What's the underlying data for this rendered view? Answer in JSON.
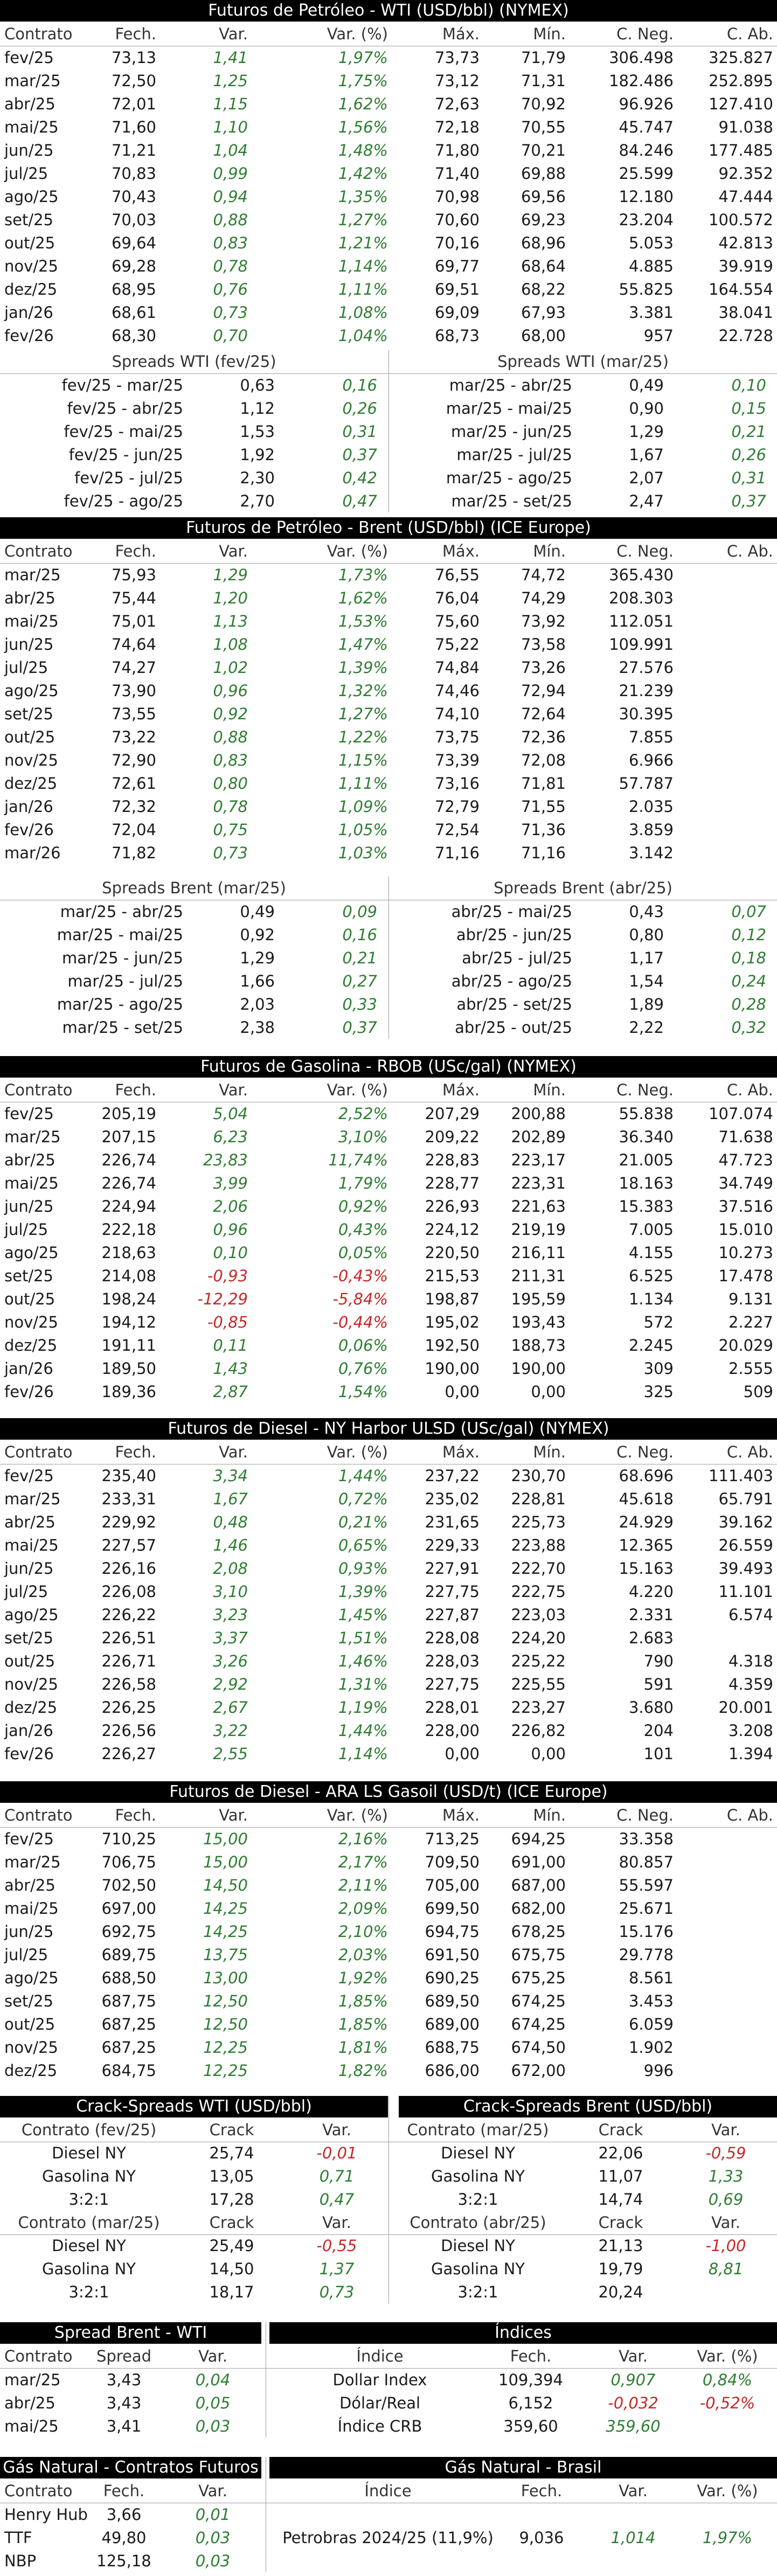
{
  "cols_main": [
    "Contrato",
    "Fech.",
    "Var.",
    "Var. (%)",
    "Máx.",
    "Mín.",
    "C. Neg.",
    "C. Ab."
  ],
  "wti": {
    "title": "Futuros de Petróleo - WTI (USD/bbl) (NYMEX)",
    "rows": [
      [
        "fev/25",
        "73,13",
        "1,41",
        "1,97%",
        "73,73",
        "71,79",
        "306.498",
        "325.827"
      ],
      [
        "mar/25",
        "72,50",
        "1,25",
        "1,75%",
        "73,12",
        "71,31",
        "182.486",
        "252.895"
      ],
      [
        "abr/25",
        "72,01",
        "1,15",
        "1,62%",
        "72,63",
        "70,92",
        "96.926",
        "127.410"
      ],
      [
        "mai/25",
        "71,60",
        "1,10",
        "1,56%",
        "72,18",
        "70,55",
        "45.747",
        "91.038"
      ],
      [
        "jun/25",
        "71,21",
        "1,04",
        "1,48%",
        "71,80",
        "70,21",
        "84.246",
        "177.485"
      ],
      [
        "jul/25",
        "70,83",
        "0,99",
        "1,42%",
        "71,40",
        "69,88",
        "25.599",
        "92.352"
      ],
      [
        "ago/25",
        "70,43",
        "0,94",
        "1,35%",
        "70,98",
        "69,56",
        "12.180",
        "47.444"
      ],
      [
        "set/25",
        "70,03",
        "0,88",
        "1,27%",
        "70,60",
        "69,23",
        "23.204",
        "100.572"
      ],
      [
        "out/25",
        "69,64",
        "0,83",
        "1,21%",
        "70,16",
        "68,96",
        "5.053",
        "42.813"
      ],
      [
        "nov/25",
        "69,28",
        "0,78",
        "1,14%",
        "69,77",
        "68,64",
        "4.885",
        "39.919"
      ],
      [
        "dez/25",
        "68,95",
        "0,76",
        "1,11%",
        "69,51",
        "68,22",
        "55.825",
        "164.554"
      ],
      [
        "jan/26",
        "68,61",
        "0,73",
        "1,08%",
        "69,09",
        "67,93",
        "3.381",
        "38.041"
      ],
      [
        "fev/26",
        "68,30",
        "0,70",
        "1,04%",
        "68,73",
        "68,00",
        "957",
        "22.728"
      ]
    ]
  },
  "wti_spreads": {
    "left_title": "Spreads WTI (fev/25)",
    "right_title": "Spreads WTI (mar/25)",
    "left": [
      [
        "fev/25 - mar/25",
        "0,63",
        "0,16"
      ],
      [
        "fev/25 - abr/25",
        "1,12",
        "0,26"
      ],
      [
        "fev/25 - mai/25",
        "1,53",
        "0,31"
      ],
      [
        "fev/25 - jun/25",
        "1,92",
        "0,37"
      ],
      [
        "fev/25 - jul/25",
        "2,30",
        "0,42"
      ],
      [
        "fev/25 - ago/25",
        "2,70",
        "0,47"
      ]
    ],
    "right": [
      [
        "mar/25 - abr/25",
        "0,49",
        "0,10"
      ],
      [
        "mar/25 - mai/25",
        "0,90",
        "0,15"
      ],
      [
        "mar/25 - jun/25",
        "1,29",
        "0,21"
      ],
      [
        "mar/25 - jul/25",
        "1,67",
        "0,26"
      ],
      [
        "mar/25 - ago/25",
        "2,07",
        "0,31"
      ],
      [
        "mar/25 - set/25",
        "2,47",
        "0,37"
      ]
    ]
  },
  "brent": {
    "title": "Futuros de Petróleo - Brent (USD/bbl) (ICE Europe)",
    "rows": [
      [
        "mar/25",
        "75,93",
        "1,29",
        "1,73%",
        "76,55",
        "74,72",
        "365.430",
        ""
      ],
      [
        "abr/25",
        "75,44",
        "1,20",
        "1,62%",
        "76,04",
        "74,29",
        "208.303",
        ""
      ],
      [
        "mai/25",
        "75,01",
        "1,13",
        "1,53%",
        "75,60",
        "73,92",
        "112.051",
        ""
      ],
      [
        "jun/25",
        "74,64",
        "1,08",
        "1,47%",
        "75,22",
        "73,58",
        "109.991",
        ""
      ],
      [
        "jul/25",
        "74,27",
        "1,02",
        "1,39%",
        "74,84",
        "73,26",
        "27.576",
        ""
      ],
      [
        "ago/25",
        "73,90",
        "0,96",
        "1,32%",
        "74,46",
        "72,94",
        "21.239",
        ""
      ],
      [
        "set/25",
        "73,55",
        "0,92",
        "1,27%",
        "74,10",
        "72,64",
        "30.395",
        ""
      ],
      [
        "out/25",
        "73,22",
        "0,88",
        "1,22%",
        "73,75",
        "72,36",
        "7.855",
        ""
      ],
      [
        "nov/25",
        "72,90",
        "0,83",
        "1,15%",
        "73,39",
        "72,08",
        "6.966",
        ""
      ],
      [
        "dez/25",
        "72,61",
        "0,80",
        "1,11%",
        "73,16",
        "71,81",
        "57.787",
        ""
      ],
      [
        "jan/26",
        "72,32",
        "0,78",
        "1,09%",
        "72,79",
        "71,55",
        "2.035",
        ""
      ],
      [
        "fev/26",
        "72,04",
        "0,75",
        "1,05%",
        "72,54",
        "71,36",
        "3.859",
        ""
      ],
      [
        "mar/26",
        "71,82",
        "0,73",
        "1,03%",
        "71,16",
        "71,16",
        "3.142",
        ""
      ]
    ]
  },
  "brent_spreads": {
    "left_title": "Spreads Brent (mar/25)",
    "right_title": "Spreads Brent (abr/25)",
    "left": [
      [
        "mar/25 - abr/25",
        "0,49",
        "0,09"
      ],
      [
        "mar/25 - mai/25",
        "0,92",
        "0,16"
      ],
      [
        "mar/25 - jun/25",
        "1,29",
        "0,21"
      ],
      [
        "mar/25 - jul/25",
        "1,66",
        "0,27"
      ],
      [
        "mar/25 - ago/25",
        "2,03",
        "0,33"
      ],
      [
        "mar/25 - set/25",
        "2,38",
        "0,37"
      ]
    ],
    "right": [
      [
        "abr/25 - mai/25",
        "0,43",
        "0,07"
      ],
      [
        "abr/25 - jun/25",
        "0,80",
        "0,12"
      ],
      [
        "abr/25 - jul/25",
        "1,17",
        "0,18"
      ],
      [
        "abr/25 - ago/25",
        "1,54",
        "0,24"
      ],
      [
        "abr/25 - set/25",
        "1,89",
        "0,28"
      ],
      [
        "abr/25 - out/25",
        "2,22",
        "0,32"
      ]
    ]
  },
  "rbob": {
    "title": "Futuros de Gasolina - RBOB (USc/gal) (NYMEX)",
    "rows": [
      [
        "fev/25",
        "205,19",
        "5,04",
        "2,52%",
        "207,29",
        "200,88",
        "55.838",
        "107.074"
      ],
      [
        "mar/25",
        "207,15",
        "6,23",
        "3,10%",
        "209,22",
        "202,89",
        "36.340",
        "71.638"
      ],
      [
        "abr/25",
        "226,74",
        "23,83",
        "11,74%",
        "228,83",
        "223,17",
        "21.005",
        "47.723"
      ],
      [
        "mai/25",
        "226,74",
        "3,99",
        "1,79%",
        "228,77",
        "223,31",
        "18.163",
        "34.749"
      ],
      [
        "jun/25",
        "224,94",
        "2,06",
        "0,92%",
        "226,93",
        "221,63",
        "15.383",
        "37.516"
      ],
      [
        "jul/25",
        "222,18",
        "0,96",
        "0,43%",
        "224,12",
        "219,19",
        "7.005",
        "15.010"
      ],
      [
        "ago/25",
        "218,63",
        "0,10",
        "0,05%",
        "220,50",
        "216,11",
        "4.155",
        "10.273"
      ],
      [
        "set/25",
        "214,08",
        "-0,93",
        "-0,43%",
        "215,53",
        "211,31",
        "6.525",
        "17.478"
      ],
      [
        "out/25",
        "198,24",
        "-12,29",
        "-5,84%",
        "198,87",
        "195,59",
        "1.134",
        "9.131"
      ],
      [
        "nov/25",
        "194,12",
        "-0,85",
        "-0,44%",
        "195,02",
        "193,43",
        "572",
        "2.227"
      ],
      [
        "dez/25",
        "191,11",
        "0,11",
        "0,06%",
        "192,50",
        "188,73",
        "2.245",
        "20.029"
      ],
      [
        "jan/26",
        "189,50",
        "1,43",
        "0,76%",
        "190,00",
        "190,00",
        "309",
        "2.555"
      ],
      [
        "fev/26",
        "189,36",
        "2,87",
        "1,54%",
        "0,00",
        "0,00",
        "325",
        "509"
      ]
    ]
  },
  "ulsd": {
    "title": "Futuros de Diesel - NY Harbor ULSD (USc/gal) (NYMEX)",
    "rows": [
      [
        "fev/25",
        "235,40",
        "3,34",
        "1,44%",
        "237,22",
        "230,70",
        "68.696",
        "111.403"
      ],
      [
        "mar/25",
        "233,31",
        "1,67",
        "0,72%",
        "235,02",
        "228,81",
        "45.618",
        "65.791"
      ],
      [
        "abr/25",
        "229,92",
        "0,48",
        "0,21%",
        "231,65",
        "225,73",
        "24.929",
        "39.162"
      ],
      [
        "mai/25",
        "227,57",
        "1,46",
        "0,65%",
        "229,33",
        "223,88",
        "12.365",
        "26.559"
      ],
      [
        "jun/25",
        "226,16",
        "2,08",
        "0,93%",
        "227,91",
        "222,70",
        "15.163",
        "39.493"
      ],
      [
        "jul/25",
        "226,08",
        "3,10",
        "1,39%",
        "227,75",
        "222,75",
        "4.220",
        "11.101"
      ],
      [
        "ago/25",
        "226,22",
        "3,23",
        "1,45%",
        "227,87",
        "223,03",
        "2.331",
        "6.574"
      ],
      [
        "set/25",
        "226,51",
        "3,37",
        "1,51%",
        "228,08",
        "224,20",
        "2.683",
        ""
      ],
      [
        "out/25",
        "226,71",
        "3,26",
        "1,46%",
        "228,03",
        "225,22",
        "790",
        "4.318"
      ],
      [
        "nov/25",
        "226,58",
        "2,92",
        "1,31%",
        "227,75",
        "225,55",
        "591",
        "4.359"
      ],
      [
        "dez/25",
        "226,25",
        "2,67",
        "1,19%",
        "228,01",
        "223,27",
        "3.680",
        "20.001"
      ],
      [
        "jan/26",
        "226,56",
        "3,22",
        "1,44%",
        "228,00",
        "226,82",
        "204",
        "3.208"
      ],
      [
        "fev/26",
        "226,27",
        "2,55",
        "1,14%",
        "0,00",
        "0,00",
        "101",
        "1.394"
      ]
    ]
  },
  "gasoil": {
    "title": "Futuros de Diesel - ARA LS Gasoil (USD/t) (ICE Europe)",
    "rows": [
      [
        "fev/25",
        "710,25",
        "15,00",
        "2,16%",
        "713,25",
        "694,25",
        "33.358",
        ""
      ],
      [
        "mar/25",
        "706,75",
        "15,00",
        "2,17%",
        "709,50",
        "691,00",
        "80.857",
        ""
      ],
      [
        "abr/25",
        "702,50",
        "14,50",
        "2,11%",
        "705,00",
        "687,00",
        "55.597",
        ""
      ],
      [
        "mai/25",
        "697,00",
        "14,25",
        "2,09%",
        "699,50",
        "682,00",
        "25.671",
        ""
      ],
      [
        "jun/25",
        "692,75",
        "14,25",
        "2,10%",
        "694,75",
        "678,25",
        "15.176",
        ""
      ],
      [
        "jul/25",
        "689,75",
        "13,75",
        "2,03%",
        "691,50",
        "675,75",
        "29.778",
        ""
      ],
      [
        "ago/25",
        "688,50",
        "13,00",
        "1,92%",
        "690,25",
        "675,25",
        "8.561",
        ""
      ],
      [
        "set/25",
        "687,75",
        "12,50",
        "1,85%",
        "689,50",
        "674,25",
        "3.453",
        ""
      ],
      [
        "out/25",
        "687,25",
        "12,50",
        "1,85%",
        "689,00",
        "674,25",
        "6.059",
        ""
      ],
      [
        "nov/25",
        "687,25",
        "12,25",
        "1,81%",
        "688,75",
        "674,50",
        "1.902",
        ""
      ],
      [
        "dez/25",
        "684,75",
        "12,25",
        "1,82%",
        "686,00",
        "672,00",
        "996",
        ""
      ]
    ]
  },
  "crack": {
    "wti_title": "Crack-Spreads WTI (USD/bbl)",
    "brent_title": "Crack-Spreads Brent (USD/bbl)",
    "col_crack": "Crack",
    "col_var": "Var.",
    "wti_groups": [
      {
        "contract": "Contrato (fev/25)",
        "rows": [
          [
            "Diesel NY",
            "25,74",
            "-0,01"
          ],
          [
            "Gasolina NY",
            "13,05",
            "0,71"
          ],
          [
            "3:2:1",
            "17,28",
            "0,47"
          ]
        ]
      },
      {
        "contract": "Contrato (mar/25)",
        "rows": [
          [
            "Diesel NY",
            "25,49",
            "-0,55"
          ],
          [
            "Gasolina NY",
            "14,50",
            "1,37"
          ],
          [
            "3:2:1",
            "18,17",
            "0,73"
          ]
        ]
      }
    ],
    "brent_groups": [
      {
        "contract": "Contrato (mar/25)",
        "rows": [
          [
            "Diesel NY",
            "22,06",
            "-0,59"
          ],
          [
            "Gasolina NY",
            "11,07",
            "1,33"
          ],
          [
            "3:2:1",
            "14,74",
            "0,69"
          ]
        ]
      },
      {
        "contract": "Contrato (abr/25)",
        "rows": [
          [
            "Diesel NY",
            "21,13",
            "-1,00"
          ],
          [
            "Gasolina NY",
            "19,79",
            "8,81"
          ],
          [
            "3:2:1",
            "20,24",
            ""
          ]
        ]
      }
    ]
  },
  "spread_bw": {
    "title": "Spread Brent - WTI",
    "cols": [
      "Contrato",
      "Spread",
      "Var."
    ],
    "rows": [
      [
        "mar/25",
        "3,43",
        "0,04"
      ],
      [
        "abr/25",
        "3,43",
        "0,05"
      ],
      [
        "mai/25",
        "3,41",
        "0,03"
      ]
    ]
  },
  "indices": {
    "title": "Índices",
    "cols": [
      "Índice",
      "Fech.",
      "Var.",
      "Var. (%)"
    ],
    "rows": [
      [
        "Dollar Index",
        "109,394",
        "0,907",
        "0,84%"
      ],
      [
        "Dólar/Real",
        "6,152",
        "-0,032",
        "-0,52%"
      ],
      [
        "Índice CRB",
        "359,60",
        "359,60",
        ""
      ]
    ]
  },
  "gas_futures": {
    "title": "Gás Natural - Contratos Futuros",
    "cols": [
      "Contrato",
      "Fech.",
      "Var."
    ],
    "rows": [
      [
        "Henry Hub",
        "3,66",
        "0,01"
      ],
      [
        "TTF",
        "49,80",
        "0,03"
      ],
      [
        "NBP",
        "125,18",
        "0,03"
      ]
    ]
  },
  "gas_brasil": {
    "title": "Gás Natural - Brasil",
    "cols": [
      "Índice",
      "Fech.",
      "Var.",
      "Var. (%)"
    ],
    "rows": [
      [
        "Petrobras 2024/25 (11,9%)",
        "9,036",
        "1,014",
        "1,97%"
      ]
    ]
  },
  "colors": {
    "positive": "#2e7d32",
    "negative": "#c62828",
    "header_bg": "#000000"
  }
}
